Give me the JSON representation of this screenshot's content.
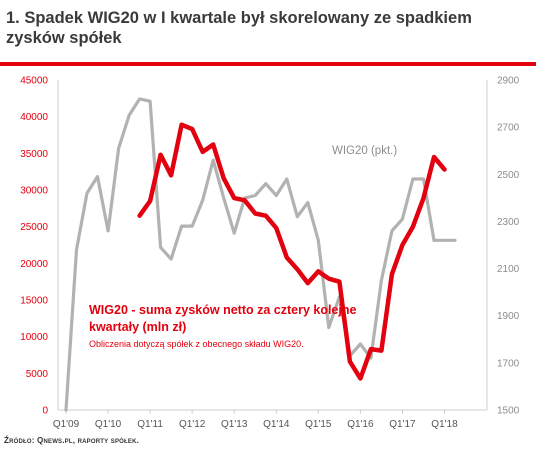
{
  "header": {
    "title": "1. Spadek WIG20 w I kwartale był skorelowany ze spadkiem zysków spółek"
  },
  "footer": {
    "source": "Źródło: Qnews.pl, raporty spółek."
  },
  "colors": {
    "profit": "#e3000f",
    "index": "#b2b2b0",
    "left_axis": "#e3000f",
    "right_axis": "#8c8c8c",
    "rule": "#e3000f"
  },
  "chart_data": {
    "type": "line",
    "title": "",
    "x_ticks": [
      "Q1'09",
      "Q1'10",
      "Q1'11",
      "Q1'12",
      "Q1'13",
      "Q1'14",
      "Q1'15",
      "Q1'16",
      "Q1'17",
      "Q1'18"
    ],
    "grid": false,
    "left_axis": {
      "min": 0,
      "max": 45000,
      "ticks": [
        0,
        5000,
        10000,
        15000,
        20000,
        25000,
        30000,
        35000,
        40000,
        45000
      ]
    },
    "right_axis": {
      "min": 1500,
      "max": 2900,
      "ticks": [
        1500,
        1700,
        1900,
        2100,
        2300,
        2500,
        2700,
        2900
      ]
    },
    "annotations": {
      "profit_label": "WIG20 - suma zysków netto za cztery kolejne kwartały (mln zł)",
      "profit_note": "Obliczenia dotyczą spółek z obecnego składu WIG20.",
      "index_label": "WIG20 (pkt.)"
    },
    "series": [
      {
        "axis": "left",
        "x": [
          "Q4'10",
          "Q1'11",
          "Q2'11",
          "Q3'11",
          "Q4'11",
          "Q1'12",
          "Q2'12",
          "Q3'12",
          "Q4'12",
          "Q1'13",
          "Q2'13",
          "Q3'13",
          "Q4'13",
          "Q1'14",
          "Q2'14",
          "Q3'14",
          "Q4'14",
          "Q1'15",
          "Q2'15",
          "Q3'15",
          "Q4'15",
          "Q1'16",
          "Q2'16",
          "Q3'16",
          "Q4'16",
          "Q1'17",
          "Q2'17",
          "Q3'17",
          "Q4'17",
          "Q1'18"
        ],
        "values": [
          26500,
          28500,
          34800,
          32000,
          38900,
          38300,
          35200,
          36200,
          31600,
          28900,
          28600,
          26800,
          26500,
          24800,
          20800,
          19200,
          17300,
          18900,
          17900,
          17500,
          6600,
          4300,
          8300,
          8100,
          18500,
          22500,
          25000,
          28900,
          34500,
          32800
        ]
      },
      {
        "axis": "right",
        "x": [
          "Q1'09",
          "Q2'09",
          "Q3'09",
          "Q4'09",
          "Q1'10",
          "Q2'10",
          "Q3'10",
          "Q4'10",
          "Q1'11",
          "Q2'11",
          "Q3'11",
          "Q4'11",
          "Q1'12",
          "Q2'12",
          "Q3'12",
          "Q4'12",
          "Q1'13",
          "Q2'13",
          "Q3'13",
          "Q4'13",
          "Q1'14",
          "Q2'14",
          "Q3'14",
          "Q4'14",
          "Q1'15",
          "Q2'15",
          "Q3'15",
          "Q4'15",
          "Q1'16",
          "Q2'16",
          "Q3'16",
          "Q4'16",
          "Q1'17",
          "Q2'17",
          "Q3'17",
          "Q4'17",
          "Q1'18",
          "Q2'18"
        ],
        "values": [
          1500,
          2180,
          2420,
          2490,
          2260,
          2610,
          2750,
          2820,
          2810,
          2190,
          2140,
          2280,
          2280,
          2390,
          2560,
          2400,
          2250,
          2400,
          2410,
          2460,
          2410,
          2480,
          2320,
          2380,
          2220,
          1850,
          1980,
          1730,
          1780,
          1720,
          2050,
          2260,
          2310,
          2480,
          2480,
          2220,
          2220,
          2220
        ]
      }
    ]
  }
}
